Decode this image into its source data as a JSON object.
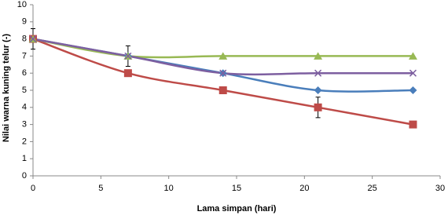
{
  "chart_data": {
    "type": "line",
    "x_label": "Lama simpan (hari)",
    "y_label": "Nilai warna kuning telur (-)",
    "xlim": [
      0,
      30
    ],
    "xticks": [
      0,
      5,
      10,
      15,
      20,
      25,
      30
    ],
    "ylim": [
      0,
      10
    ],
    "yticks": [
      0,
      1,
      2,
      3,
      4,
      5,
      6,
      7,
      8,
      9,
      10
    ],
    "x": [
      0,
      7,
      14,
      21,
      28
    ],
    "smooth": true,
    "series": [
      {
        "color": "#4a7ebb",
        "marker": "diamond",
        "values": [
          8,
          7,
          6,
          5,
          5
        ],
        "errors": [
          0.6,
          0.6,
          null,
          null,
          null
        ]
      },
      {
        "color": "#be4b48",
        "marker": "square",
        "values": [
          8,
          6,
          5,
          4,
          3
        ],
        "errors": [
          null,
          null,
          null,
          0.6,
          null
        ]
      },
      {
        "color": "#98b954",
        "marker": "triangle",
        "values": [
          8,
          7,
          7,
          7,
          7
        ]
      },
      {
        "color": "#7d5fa0",
        "marker": "cross",
        "values": [
          8,
          7,
          6,
          6,
          6
        ]
      }
    ]
  }
}
